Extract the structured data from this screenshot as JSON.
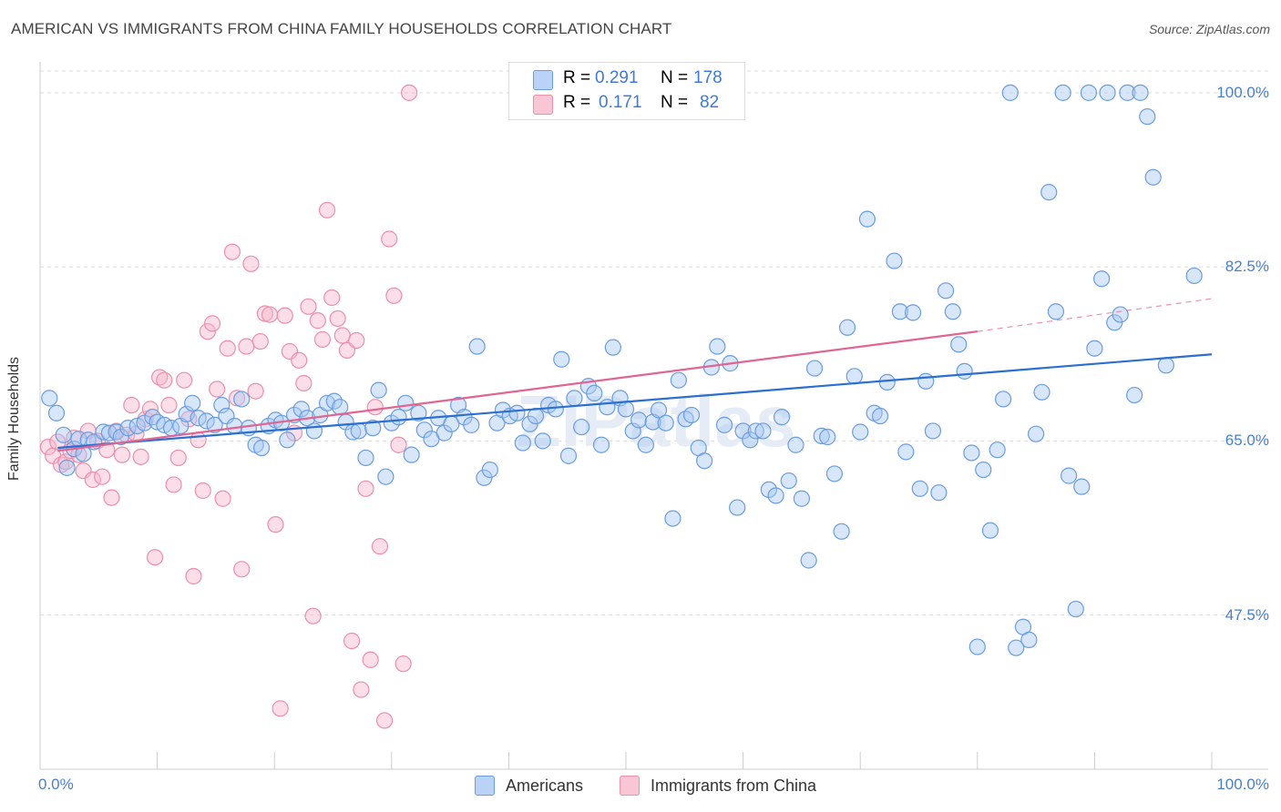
{
  "title": "AMERICAN VS IMMIGRANTS FROM CHINA FAMILY HOUSEHOLDS CORRELATION CHART",
  "source": "Source: ZipAtlas.com",
  "watermark": "ZIPatlas",
  "legend_top": {
    "r_label": "R =",
    "n_label": "N =",
    "rows": [
      {
        "r": "0.291",
        "n": "178"
      },
      {
        "r": "0.171",
        "n": "82"
      }
    ]
  },
  "legend_bottom": [
    "Americans",
    "Immigrants from China"
  ],
  "colors": {
    "americans_fill": "#a9c8f3",
    "americans_stroke": "#6a9de0",
    "americans_line": "#2a6fd1",
    "china_fill": "#f6b6c9",
    "china_stroke": "#ec8fab",
    "china_line": "#e06592",
    "tick_text": "#4a7fcf",
    "grid": "#dddddd"
  },
  "chart_data": {
    "type": "scatter",
    "title": "AMERICAN VS IMMIGRANTS FROM CHINA FAMILY HOUSEHOLDS CORRELATION CHART",
    "xlabel": "",
    "ylabel": "Family Households",
    "xlim": [
      0,
      100
    ],
    "ylim": [
      32,
      102
    ],
    "x_tick_labels": [
      "0.0%",
      "100.0%"
    ],
    "y_ticks": [
      47.5,
      65.0,
      82.5,
      100.0
    ],
    "y_tick_labels": [
      "47.5%",
      "65.0%",
      "82.5%",
      "100.0%"
    ],
    "grid": "horizontal dashed",
    "series": [
      {
        "name": "Americans",
        "R": 0.291,
        "N": 178,
        "trend": {
          "x": [
            1.5,
            100
          ],
          "y": [
            64.3,
            73.7
          ]
        },
        "points": [
          [
            0.8,
            69.3
          ],
          [
            1.4,
            67.8
          ],
          [
            2.0,
            65.6
          ],
          [
            2.3,
            62.3
          ],
          [
            2.9,
            64.2
          ],
          [
            3.3,
            65.2
          ],
          [
            3.7,
            63.7
          ],
          [
            4.1,
            65.1
          ],
          [
            4.6,
            64.9
          ],
          [
            5.4,
            65.9
          ],
          [
            5.9,
            65.8
          ],
          [
            6.5,
            65.9
          ],
          [
            6.9,
            65.4
          ],
          [
            7.5,
            66.3
          ],
          [
            8.3,
            66.5
          ],
          [
            8.9,
            66.8
          ],
          [
            9.6,
            67.4
          ],
          [
            10.0,
            66.9
          ],
          [
            10.6,
            66.6
          ],
          [
            11.2,
            66.3
          ],
          [
            12.0,
            66.5
          ],
          [
            12.5,
            67.7
          ],
          [
            13.0,
            68.8
          ],
          [
            13.5,
            67.3
          ],
          [
            14.2,
            67.0
          ],
          [
            14.9,
            66.6
          ],
          [
            15.5,
            68.6
          ],
          [
            15.9,
            67.5
          ],
          [
            16.6,
            66.5
          ],
          [
            17.2,
            69.2
          ],
          [
            17.8,
            66.3
          ],
          [
            18.4,
            64.6
          ],
          [
            18.9,
            64.3
          ],
          [
            19.5,
            66.5
          ],
          [
            20.1,
            67.1
          ],
          [
            20.6,
            66.8
          ],
          [
            21.1,
            65.1
          ],
          [
            21.7,
            67.6
          ],
          [
            22.3,
            68.2
          ],
          [
            22.8,
            67.3
          ],
          [
            23.4,
            66.0
          ],
          [
            23.9,
            67.6
          ],
          [
            24.5,
            68.8
          ],
          [
            25.1,
            69.0
          ],
          [
            25.6,
            68.4
          ],
          [
            26.1,
            66.9
          ],
          [
            26.7,
            65.9
          ],
          [
            27.2,
            66.0
          ],
          [
            27.8,
            63.3
          ],
          [
            28.4,
            66.3
          ],
          [
            28.9,
            70.1
          ],
          [
            29.5,
            61.4
          ],
          [
            30.0,
            66.8
          ],
          [
            30.6,
            67.4
          ],
          [
            31.2,
            68.8
          ],
          [
            31.7,
            63.6
          ],
          [
            32.3,
            67.8
          ],
          [
            32.8,
            66.1
          ],
          [
            33.4,
            65.2
          ],
          [
            34.0,
            67.3
          ],
          [
            34.5,
            65.8
          ],
          [
            35.1,
            66.7
          ],
          [
            35.7,
            68.6
          ],
          [
            36.2,
            67.4
          ],
          [
            36.8,
            66.6
          ],
          [
            37.3,
            74.5
          ],
          [
            37.9,
            61.3
          ],
          [
            38.4,
            62.1
          ],
          [
            39.0,
            66.8
          ],
          [
            39.5,
            68.1
          ],
          [
            40.1,
            67.5
          ],
          [
            40.7,
            67.8
          ],
          [
            41.2,
            64.8
          ],
          [
            41.8,
            66.7
          ],
          [
            42.3,
            67.5
          ],
          [
            42.9,
            65.0
          ],
          [
            43.4,
            68.6
          ],
          [
            44.0,
            68.2
          ],
          [
            44.5,
            73.2
          ],
          [
            45.1,
            63.5
          ],
          [
            45.6,
            69.3
          ],
          [
            46.2,
            66.4
          ],
          [
            46.8,
            70.5
          ],
          [
            47.3,
            69.8
          ],
          [
            47.9,
            64.6
          ],
          [
            48.4,
            68.4
          ],
          [
            48.9,
            74.4
          ],
          [
            49.5,
            69.3
          ],
          [
            50.0,
            68.2
          ],
          [
            50.6,
            66.0
          ],
          [
            51.1,
            67.1
          ],
          [
            51.7,
            64.6
          ],
          [
            52.3,
            66.9
          ],
          [
            52.8,
            68.1
          ],
          [
            53.4,
            66.8
          ],
          [
            54.0,
            57.2
          ],
          [
            54.5,
            71.1
          ],
          [
            55.1,
            67.2
          ],
          [
            55.6,
            67.6
          ],
          [
            56.2,
            64.3
          ],
          [
            56.7,
            63.0
          ],
          [
            57.3,
            72.4
          ],
          [
            57.8,
            74.5
          ],
          [
            58.4,
            66.6
          ],
          [
            58.9,
            72.8
          ],
          [
            59.5,
            58.3
          ],
          [
            60.0,
            66.0
          ],
          [
            60.6,
            65.1
          ],
          [
            61.1,
            66.0
          ],
          [
            61.7,
            66.0
          ],
          [
            62.2,
            60.1
          ],
          [
            62.8,
            59.5
          ],
          [
            63.3,
            67.4
          ],
          [
            63.9,
            61.0
          ],
          [
            64.5,
            64.6
          ],
          [
            65.0,
            59.2
          ],
          [
            65.6,
            53.0
          ],
          [
            66.1,
            72.3
          ],
          [
            66.7,
            65.5
          ],
          [
            67.2,
            65.4
          ],
          [
            67.8,
            61.7
          ],
          [
            68.4,
            55.9
          ],
          [
            68.9,
            76.4
          ],
          [
            69.5,
            71.5
          ],
          [
            70.0,
            65.9
          ],
          [
            70.6,
            87.3
          ],
          [
            71.2,
            67.8
          ],
          [
            71.7,
            67.5
          ],
          [
            72.3,
            70.9
          ],
          [
            72.9,
            83.1
          ],
          [
            73.4,
            78.0
          ],
          [
            73.9,
            63.9
          ],
          [
            74.5,
            77.9
          ],
          [
            75.1,
            60.2
          ],
          [
            75.6,
            71.0
          ],
          [
            76.2,
            66.0
          ],
          [
            76.7,
            59.8
          ],
          [
            77.3,
            80.1
          ],
          [
            77.9,
            78.0
          ],
          [
            78.4,
            74.7
          ],
          [
            78.9,
            72.0
          ],
          [
            79.5,
            63.8
          ],
          [
            80.0,
            44.3
          ],
          [
            80.5,
            62.1
          ],
          [
            81.1,
            56.0
          ],
          [
            81.7,
            64.1
          ],
          [
            82.2,
            69.2
          ],
          [
            82.8,
            100.0
          ],
          [
            83.3,
            44.2
          ],
          [
            83.9,
            46.3
          ],
          [
            84.4,
            45.0
          ],
          [
            85.0,
            65.7
          ],
          [
            85.5,
            69.9
          ],
          [
            86.1,
            90.0
          ],
          [
            86.7,
            78.0
          ],
          [
            87.3,
            100.0
          ],
          [
            87.8,
            61.5
          ],
          [
            88.4,
            48.1
          ],
          [
            88.9,
            60.4
          ],
          [
            89.5,
            100.0
          ],
          [
            90.0,
            74.3
          ],
          [
            90.6,
            81.3
          ],
          [
            91.1,
            100.0
          ],
          [
            91.7,
            76.9
          ],
          [
            92.2,
            77.7
          ],
          [
            92.8,
            100.0
          ],
          [
            93.4,
            69.6
          ],
          [
            93.9,
            100.0
          ],
          [
            94.5,
            97.6
          ],
          [
            95.0,
            91.5
          ],
          [
            96.1,
            72.6
          ],
          [
            98.5,
            81.6
          ]
        ]
      },
      {
        "name": "Immigrants from China",
        "R": 0.171,
        "N": 82,
        "trend": {
          "x": [
            1.5,
            80.0
          ],
          "y": [
            64.0,
            76.0
          ]
        },
        "trend_extension": {
          "x": [
            80.0,
            100
          ],
          "y": [
            76.0,
            79.3
          ]
        },
        "points": [
          [
            0.7,
            64.4
          ],
          [
            1.1,
            63.5
          ],
          [
            1.5,
            64.9
          ],
          [
            1.8,
            62.6
          ],
          [
            2.2,
            62.9
          ],
          [
            2.6,
            64.0
          ],
          [
            2.9,
            65.3
          ],
          [
            3.3,
            63.6
          ],
          [
            3.7,
            62.0
          ],
          [
            4.1,
            66.0
          ],
          [
            4.5,
            61.1
          ],
          [
            4.9,
            65.0
          ],
          [
            5.3,
            61.4
          ],
          [
            5.7,
            64.1
          ],
          [
            6.1,
            59.3
          ],
          [
            6.5,
            66.0
          ],
          [
            7.0,
            63.6
          ],
          [
            7.4,
            65.6
          ],
          [
            7.8,
            68.6
          ],
          [
            8.2,
            65.7
          ],
          [
            8.6,
            63.4
          ],
          [
            9.0,
            67.2
          ],
          [
            9.4,
            68.2
          ],
          [
            9.8,
            53.3
          ],
          [
            10.2,
            71.4
          ],
          [
            10.6,
            71.1
          ],
          [
            11.0,
            68.6
          ],
          [
            11.4,
            60.6
          ],
          [
            11.8,
            63.3
          ],
          [
            12.3,
            71.1
          ],
          [
            12.7,
            67.2
          ],
          [
            13.1,
            51.4
          ],
          [
            13.5,
            65.1
          ],
          [
            13.9,
            60.0
          ],
          [
            14.3,
            76.0
          ],
          [
            14.7,
            76.8
          ],
          [
            15.1,
            70.2
          ],
          [
            15.6,
            59.2
          ],
          [
            16.0,
            74.3
          ],
          [
            16.4,
            84.0
          ],
          [
            16.8,
            69.3
          ],
          [
            17.2,
            52.1
          ],
          [
            17.6,
            74.5
          ],
          [
            18.0,
            82.8
          ],
          [
            18.4,
            70.0
          ],
          [
            18.8,
            75.0
          ],
          [
            19.2,
            77.8
          ],
          [
            19.6,
            77.7
          ],
          [
            20.1,
            56.6
          ],
          [
            20.5,
            38.1
          ],
          [
            20.9,
            77.6
          ],
          [
            21.3,
            74.0
          ],
          [
            21.7,
            65.8
          ],
          [
            22.1,
            73.1
          ],
          [
            22.5,
            70.8
          ],
          [
            22.9,
            78.5
          ],
          [
            23.3,
            47.4
          ],
          [
            23.7,
            77.1
          ],
          [
            24.1,
            75.2
          ],
          [
            24.5,
            88.2
          ],
          [
            24.9,
            79.4
          ],
          [
            25.4,
            77.3
          ],
          [
            25.8,
            75.6
          ],
          [
            26.2,
            74.1
          ],
          [
            26.6,
            44.9
          ],
          [
            27.0,
            75.1
          ],
          [
            27.4,
            40.0
          ],
          [
            27.8,
            60.2
          ],
          [
            28.2,
            43.0
          ],
          [
            28.6,
            68.4
          ],
          [
            29.0,
            54.4
          ],
          [
            29.4,
            36.9
          ],
          [
            29.8,
            85.3
          ],
          [
            30.2,
            79.6
          ],
          [
            30.6,
            64.6
          ],
          [
            31.0,
            42.6
          ],
          [
            31.5,
            100.0
          ]
        ]
      }
    ]
  }
}
